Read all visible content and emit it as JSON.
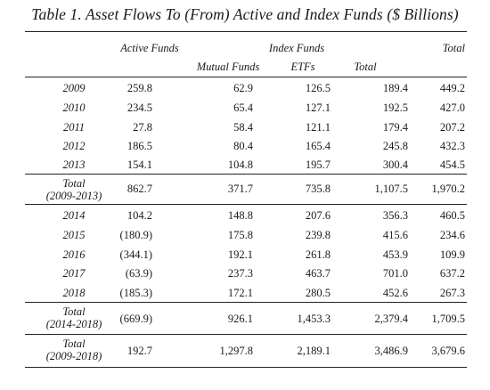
{
  "title": "Table 1. Asset Flows To (From) Active and Index Funds ($ Billions)",
  "header": {
    "active": "Active Funds",
    "index": "Index Funds",
    "total": "Total",
    "mutual": "Mutual Funds",
    "etfs": "ETFs",
    "index_total": "Total"
  },
  "rows": [
    {
      "label": "2009",
      "active": "259.8",
      "mutual": "62.9",
      "etfs": "126.5",
      "index_total": "189.4",
      "total": "449.2"
    },
    {
      "label": "2010",
      "active": "234.5",
      "mutual": "65.4",
      "etfs": "127.1",
      "index_total": "192.5",
      "total": "427.0"
    },
    {
      "label": "2011",
      "active": "27.8",
      "mutual": "58.4",
      "etfs": "121.1",
      "index_total": "179.4",
      "total": "207.2"
    },
    {
      "label": "2012",
      "active": "186.5",
      "mutual": "80.4",
      "etfs": "165.4",
      "index_total": "245.8",
      "total": "432.3"
    },
    {
      "label": "2013",
      "active": "154.1",
      "mutual": "104.8",
      "etfs": "195.7",
      "index_total": "300.4",
      "total": "454.5"
    },
    {
      "label1": "Total",
      "label2": "(2009-2013)",
      "active": "862.7",
      "mutual": "371.7",
      "etfs": "735.8",
      "index_total": "1,107.5",
      "total": "1,970.2"
    },
    {
      "label": "2014",
      "active": "104.2",
      "mutual": "148.8",
      "etfs": "207.6",
      "index_total": "356.3",
      "total": "460.5"
    },
    {
      "label": "2015",
      "active": "(180.9)",
      "mutual": "175.8",
      "etfs": "239.8",
      "index_total": "415.6",
      "total": "234.6"
    },
    {
      "label": "2016",
      "active": "(344.1)",
      "mutual": "192.1",
      "etfs": "261.8",
      "index_total": "453.9",
      "total": "109.9"
    },
    {
      "label": "2017",
      "active": "(63.9)",
      "mutual": "237.3",
      "etfs": "463.7",
      "index_total": "701.0",
      "total": "637.2"
    },
    {
      "label": "2018",
      "active": "(185.3)",
      "mutual": "172.1",
      "etfs": "280.5",
      "index_total": "452.6",
      "total": "267.3"
    },
    {
      "label1": "Total",
      "label2": "(2014-2018)",
      "active": "(669.9)",
      "mutual": "926.1",
      "etfs": "1,453.3",
      "index_total": "2,379.4",
      "total": "1,709.5"
    },
    {
      "label1": "Total",
      "label2": "(2009-2018)",
      "active": "192.7",
      "mutual": "1,297.8",
      "etfs": "2,189.1",
      "index_total": "3,486.9",
      "total": "3,679.6"
    }
  ]
}
